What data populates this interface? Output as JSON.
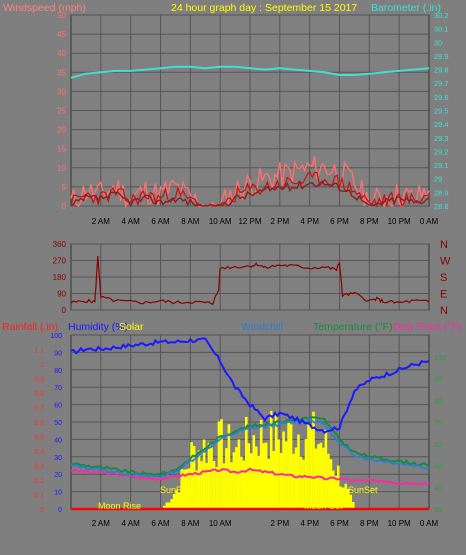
{
  "header": {
    "title": "24 hour graph day : September 15 2017",
    "left_axis_label": "Windspeed (mph)",
    "right_axis_label": "Barometer (.in)"
  },
  "colors": {
    "background": "#7f7f7f",
    "grid": "#555555",
    "wind": "#ff7070",
    "wind_dark": "#cc1010",
    "wind_avg": "#8a2020",
    "barometer": "#40e0d0",
    "direction": "#8b0000",
    "rain": "#ff0000",
    "humidity": "#1a1aff",
    "solar": "#ffff00",
    "windchill": "#2a7fd0",
    "temperature": "#1a8a3a",
    "dewpoint": "#ff2aa0",
    "rain_axis": "#ff3030",
    "humidity_axis": "#1a1aff",
    "temp_axis": "#2aa040",
    "title": "#ffff00"
  },
  "time_labels": [
    "2 AM",
    "4 AM",
    "6 AM",
    "8 AM",
    "10 AM",
    "12 PM",
    "2 PM",
    "4 PM",
    "6 PM",
    "8 PM",
    "10 PM",
    "0 AM"
  ],
  "panel3_time_labels": [
    "2 AM",
    "4 AM",
    "6 AM",
    "8 AM",
    "10 AM",
    "",
    "2 PM",
    "4 PM",
    "6 PM",
    "8 PM",
    "10 PM",
    "0 AM"
  ],
  "panel1": {
    "left_ticks": [
      "0",
      "5",
      "10",
      "15",
      "20",
      "25",
      "30",
      "35",
      "40",
      "45",
      "50"
    ],
    "right_ticks": [
      "28.8",
      "28.9",
      "29",
      "29.1",
      "29.2",
      "29.3",
      "29.4",
      "29.5",
      "29.6",
      "29.7",
      "29.8",
      "29.9",
      "30",
      "30.1",
      "30.2"
    ]
  },
  "panel2": {
    "left_ticks": [
      "0",
      "90",
      "180",
      "270",
      "360"
    ],
    "right_labels": [
      "N",
      "E",
      "S",
      "W",
      "N"
    ]
  },
  "panel3": {
    "legend": {
      "rain": "Rainfall (.in)",
      "humidity": "Humidity (%)",
      "solar": "Solar",
      "windchill": "Windchill",
      "temperature": "Temperature (°F)",
      "dewpoint": "Dew Point (°F)"
    },
    "rain_ticks": [
      "0",
      "0.1",
      "0.2",
      "0.3",
      "0.4",
      "0.5",
      "0.6",
      "0.7",
      "0.8",
      "0.9",
      "1",
      "1.1"
    ],
    "humidity_ticks": [
      "0",
      "10",
      "20",
      "30",
      "40",
      "50",
      "60",
      "70",
      "80",
      "90",
      "100"
    ],
    "temp_ticks": [
      "30",
      "40",
      "50",
      "60",
      "70",
      "80",
      "90",
      "100"
    ],
    "annotations": {
      "moon_rise": "Moon Rise",
      "moon_set": "Moon Set",
      "sun_rise": "SunRise",
      "sun_set": "SunSet"
    }
  },
  "chart_data": [
    {
      "type": "line",
      "title": "24 hour graph day : September 15 2017",
      "x_hours": [
        0,
        1,
        2,
        3,
        4,
        5,
        6,
        7,
        8,
        9,
        10,
        11,
        12,
        13,
        14,
        15,
        16,
        17,
        18,
        19,
        20,
        21,
        22,
        23,
        24
      ],
      "series": [
        {
          "name": "Windspeed (mph)",
          "axis": "left",
          "ylim": [
            0,
            50
          ],
          "values": [
            1,
            4,
            3,
            5,
            2,
            4,
            3,
            5,
            2,
            0,
            0,
            4,
            6,
            7,
            8,
            9,
            10,
            10,
            9,
            6,
            1,
            2,
            3,
            2,
            4
          ]
        },
        {
          "name": "Windspeed (mph)",
          "style": "average",
          "axis": "left",
          "ylim": [
            0,
            50
          ],
          "values": [
            0,
            2,
            2,
            3,
            1,
            2,
            1,
            2,
            1,
            0,
            0,
            2,
            3,
            4,
            5,
            5,
            6,
            6,
            5,
            3,
            0,
            1,
            2,
            1,
            2
          ]
        },
        {
          "name": "Barometer (.in)",
          "axis": "right",
          "ylim": [
            28.8,
            30.2
          ],
          "values": [
            29.74,
            29.77,
            29.78,
            29.79,
            29.79,
            29.8,
            29.81,
            29.82,
            29.82,
            29.81,
            29.82,
            29.82,
            29.81,
            29.8,
            29.81,
            29.8,
            29.79,
            29.78,
            29.76,
            29.76,
            29.77,
            29.78,
            29.79,
            29.8,
            29.81
          ]
        }
      ]
    },
    {
      "type": "scatter",
      "ylabel": "Wind direction (degrees)",
      "ylim": [
        0,
        360
      ],
      "x_hours": [
        0,
        1,
        1.6,
        1.8,
        2,
        3,
        4,
        5,
        6,
        7,
        8,
        9,
        9.5,
        9.9,
        10,
        11,
        12,
        12.5,
        13,
        14,
        15,
        16,
        17,
        17.8,
        18,
        18.2,
        19,
        20,
        20.5,
        21,
        22,
        23,
        24
      ],
      "values": [
        40,
        50,
        45,
        300,
        70,
        50,
        45,
        40,
        50,
        40,
        45,
        40,
        38,
        110,
        230,
        235,
        240,
        250,
        230,
        245,
        240,
        230,
        235,
        220,
        260,
        80,
        90,
        50,
        60,
        45,
        40,
        50,
        45
      ]
    },
    {
      "type": "line",
      "x_hours": [
        0,
        1,
        2,
        3,
        4,
        5,
        6,
        7,
        8,
        9,
        10,
        11,
        12,
        13,
        14,
        15,
        16,
        17,
        18,
        19,
        20,
        21,
        22,
        23,
        24
      ],
      "series": [
        {
          "name": "Rainfall (.in)",
          "axis": "rain",
          "ylim": [
            0,
            1.2
          ],
          "values": [
            0,
            0,
            0,
            0,
            0,
            0,
            0,
            0,
            0,
            0,
            0,
            0,
            0,
            0,
            0,
            0,
            0,
            0,
            0,
            0,
            0,
            0,
            0,
            0,
            0
          ]
        },
        {
          "name": "Humidity (%)",
          "axis": "humidity",
          "ylim": [
            0,
            100
          ],
          "values": [
            90,
            92,
            92,
            93,
            94,
            95,
            96,
            96,
            97,
            97,
            85,
            70,
            60,
            52,
            55,
            52,
            48,
            45,
            47,
            68,
            74,
            77,
            80,
            83,
            85
          ]
        },
        {
          "name": "Solar",
          "axis": "humidity",
          "ylim": [
            0,
            100
          ],
          "values": [
            0,
            0,
            0,
            0,
            0,
            0,
            0,
            12,
            35,
            40,
            42,
            38,
            45,
            48,
            45,
            50,
            47,
            40,
            20,
            0,
            0,
            0,
            0,
            0,
            0
          ]
        },
        {
          "name": "Windchill",
          "axis": "temp",
          "ylim": [
            30,
            100
          ],
          "values": [
            50,
            49,
            48,
            47,
            46,
            45,
            45,
            47,
            52,
            57,
            62,
            65,
            67,
            68,
            69,
            70,
            71,
            69,
            60,
            55,
            53,
            52,
            51,
            50,
            49
          ]
        },
        {
          "name": "Temperature (°F)",
          "axis": "temp",
          "ylim": [
            30,
            100
          ],
          "values": [
            51,
            50,
            49,
            48,
            47,
            46,
            46,
            48,
            53,
            58,
            63,
            66,
            68,
            69,
            70,
            71,
            72,
            71,
            62,
            56,
            54,
            53,
            52,
            51,
            50
          ]
        },
        {
          "name": "Dew Point (°F)",
          "axis": "temp",
          "ylim": [
            30,
            100
          ],
          "values": [
            48,
            47,
            47,
            46,
            45,
            44,
            44,
            45,
            46,
            47,
            48,
            47,
            48,
            47,
            46,
            45,
            45,
            44,
            44,
            43,
            43,
            43,
            42,
            42,
            42
          ]
        }
      ]
    }
  ]
}
